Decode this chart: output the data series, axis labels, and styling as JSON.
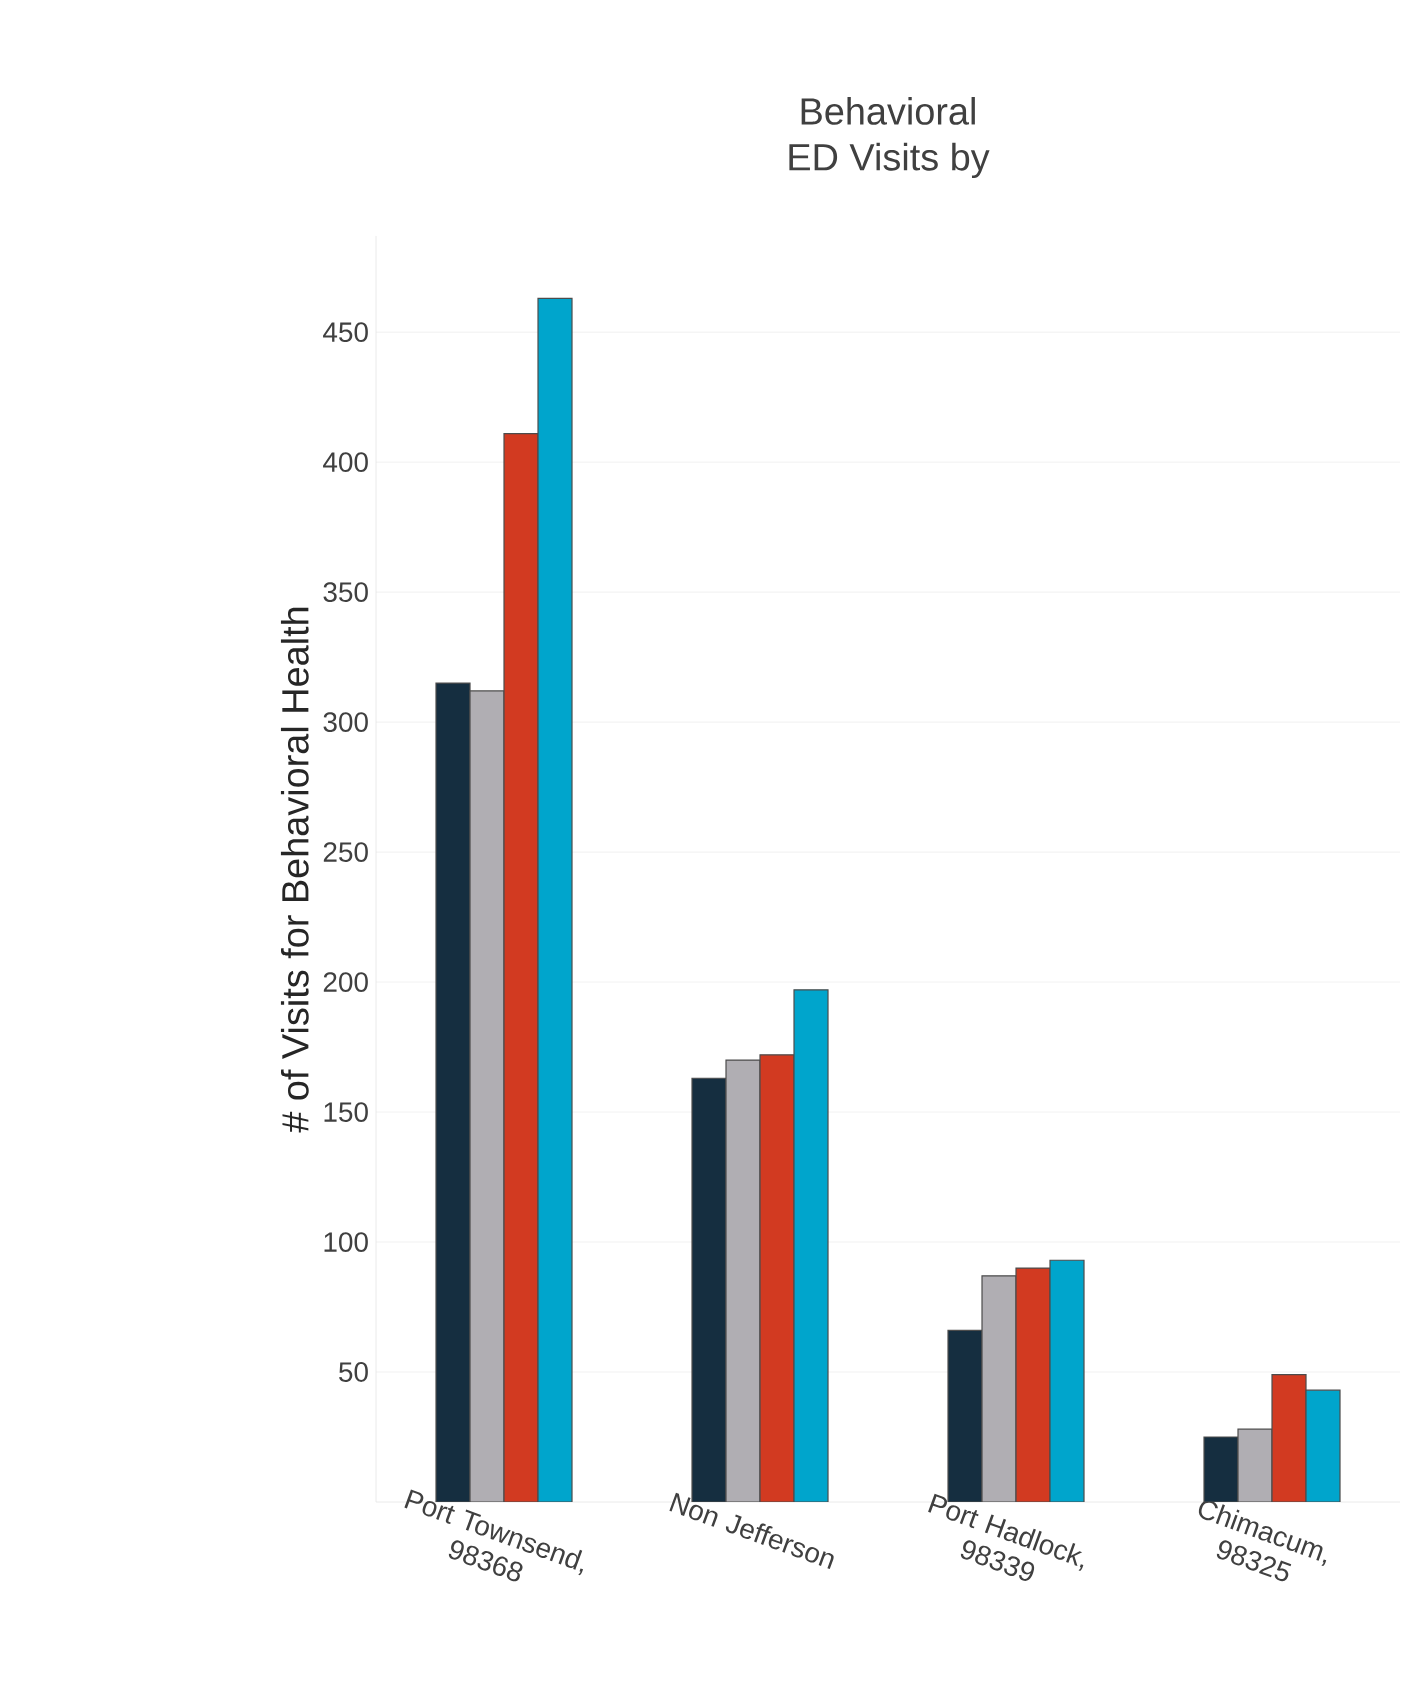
{
  "chart_data": {
    "type": "bar",
    "title": "Behavioral",
    "subtitle": "ED Visits by",
    "ylabel": "# of Visits for Behavioral Health",
    "categories": [
      "Port Townsend, 98368",
      "Non Jefferson",
      "Port Hadlock, 98339",
      "Chimacum, 98325"
    ],
    "series": [
      {
        "color": "#152e40",
        "values": [
          315,
          163,
          66,
          25
        ]
      },
      {
        "color": "#b0aeb3",
        "values": [
          312,
          170,
          87,
          28
        ]
      },
      {
        "color": "#d23a21",
        "values": [
          411,
          172,
          90,
          49
        ]
      },
      {
        "color": "#00a5cc",
        "values": [
          463,
          197,
          93,
          43
        ]
      }
    ],
    "ylim": [
      0,
      487
    ],
    "yticks": [
      50,
      100,
      150,
      200,
      250,
      300,
      350,
      400,
      450
    ],
    "grid": "y"
  }
}
